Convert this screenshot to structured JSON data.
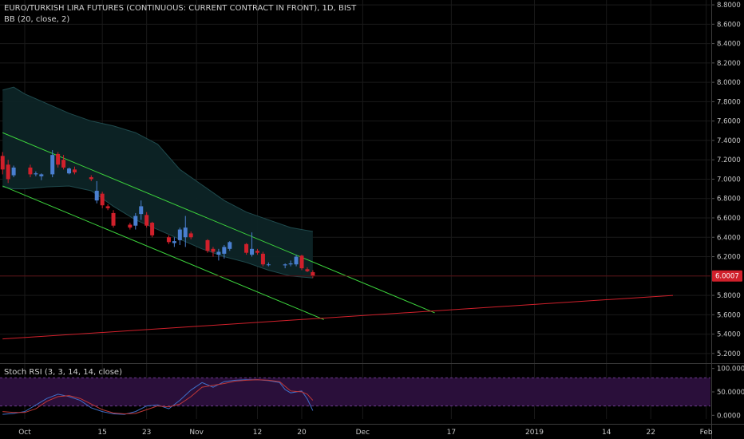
{
  "header": {
    "title": "EURO/TURKISH LIRA FUTURES (CONTINUOUS: CURRENT CONTRACT IN FRONT), 1D, BIST",
    "bb_legend": "BB (20, close, 2)",
    "rsi_legend": "Stoch RSI (3, 3, 14, 14, close)"
  },
  "colors": {
    "background": "#000000",
    "grid": "#1a1a1a",
    "up_candle": "#4a7fd0",
    "down_candle": "#d0202b",
    "bb_fill": "#0d2426",
    "bb_line": "#1f4a4d",
    "trend_green": "#3cd33c",
    "trend_red": "#d0202b",
    "rsi_band": "#2a0f3a",
    "rsi_k": "#3f6fc8",
    "rsi_d": "#c03838",
    "price_tag": "#d0202b"
  },
  "chart_data": [
    {
      "type": "candlestick",
      "name": "price",
      "ylim": [
        5.1,
        8.85
      ],
      "yticks": [
        "8.8000",
        "8.6000",
        "8.4000",
        "8.2000",
        "8.0000",
        "7.8000",
        "7.6000",
        "7.4000",
        "7.2000",
        "7.0000",
        "6.8000",
        "6.6000",
        "6.4000",
        "6.2000",
        "6.0000",
        "5.8000",
        "5.6000",
        "5.4000",
        "5.2000"
      ],
      "ytick_values": [
        8.8,
        8.6,
        8.4,
        8.2,
        8.0,
        7.8,
        7.6,
        7.4,
        7.2,
        7.0,
        6.8,
        6.6,
        6.4,
        6.2,
        6.0,
        5.8,
        5.6,
        5.4,
        5.2
      ],
      "xlim": [
        -4,
        120
      ],
      "x_labels": [
        {
          "day": 0,
          "label": "Oct"
        },
        {
          "day": 14,
          "label": "15"
        },
        {
          "day": 22,
          "label": "23"
        },
        {
          "day": 31,
          "label": "Nov"
        },
        {
          "day": 42,
          "label": "12"
        },
        {
          "day": 50,
          "label": "20"
        },
        {
          "day": 61,
          "label": "Dec"
        },
        {
          "day": 77,
          "label": "17"
        },
        {
          "day": 92,
          "label": "2019"
        },
        {
          "day": 105,
          "label": "14"
        },
        {
          "day": 113,
          "label": "22"
        },
        {
          "day": 123,
          "label": "Feb"
        }
      ],
      "last_price": "6.0007",
      "last_price_value": 6.0007,
      "candles": [
        {
          "d": -4,
          "o": 7.24,
          "h": 7.28,
          "l": 7.05,
          "c": 7.1
        },
        {
          "d": -3,
          "o": 7.15,
          "h": 7.2,
          "l": 6.96,
          "c": 7.0
        },
        {
          "d": -2,
          "o": 7.04,
          "h": 7.14,
          "l": 7.02,
          "c": 7.12
        },
        {
          "d": 1,
          "o": 7.12,
          "h": 7.15,
          "l": 7.02,
          "c": 7.05
        },
        {
          "d": 2,
          "o": 7.05,
          "h": 7.08,
          "l": 7.03,
          "c": 7.06
        },
        {
          "d": 3,
          "o": 7.03,
          "h": 7.06,
          "l": 6.99,
          "c": 7.05
        },
        {
          "d": 5,
          "o": 7.05,
          "h": 7.3,
          "l": 7.02,
          "c": 7.25
        },
        {
          "d": 6,
          "o": 7.26,
          "h": 7.28,
          "l": 7.12,
          "c": 7.15
        },
        {
          "d": 7,
          "o": 7.2,
          "h": 7.25,
          "l": 7.1,
          "c": 7.12
        },
        {
          "d": 8,
          "o": 7.06,
          "h": 7.12,
          "l": 7.05,
          "c": 7.11
        },
        {
          "d": 9,
          "o": 7.1,
          "h": 7.13,
          "l": 7.05,
          "c": 7.07
        },
        {
          "d": 12,
          "o": 7.02,
          "h": 7.04,
          "l": 6.98,
          "c": 7.0
        },
        {
          "d": 13,
          "o": 6.78,
          "h": 6.98,
          "l": 6.75,
          "c": 6.88
        },
        {
          "d": 14,
          "o": 6.85,
          "h": 6.87,
          "l": 6.7,
          "c": 6.73
        },
        {
          "d": 15,
          "o": 6.72,
          "h": 6.74,
          "l": 6.68,
          "c": 6.7
        },
        {
          "d": 16,
          "o": 6.65,
          "h": 6.68,
          "l": 6.5,
          "c": 6.52
        },
        {
          "d": 19,
          "o": 6.53,
          "h": 6.55,
          "l": 6.48,
          "c": 6.5
        },
        {
          "d": 20,
          "o": 6.52,
          "h": 6.65,
          "l": 6.48,
          "c": 6.62
        },
        {
          "d": 21,
          "o": 6.64,
          "h": 6.78,
          "l": 6.58,
          "c": 6.72
        },
        {
          "d": 22,
          "o": 6.63,
          "h": 6.66,
          "l": 6.5,
          "c": 6.52
        },
        {
          "d": 23,
          "o": 6.55,
          "h": 6.56,
          "l": 6.4,
          "c": 6.42
        },
        {
          "d": 26,
          "o": 6.4,
          "h": 6.42,
          "l": 6.33,
          "c": 6.35
        },
        {
          "d": 27,
          "o": 6.34,
          "h": 6.4,
          "l": 6.3,
          "c": 6.36
        },
        {
          "d": 28,
          "o": 6.37,
          "h": 6.5,
          "l": 6.32,
          "c": 6.48
        },
        {
          "d": 29,
          "o": 6.4,
          "h": 6.62,
          "l": 6.3,
          "c": 6.5
        },
        {
          "d": 30,
          "o": 6.44,
          "h": 6.46,
          "l": 6.38,
          "c": 6.4
        },
        {
          "d": 33,
          "o": 6.37,
          "h": 6.38,
          "l": 6.24,
          "c": 6.26
        },
        {
          "d": 34,
          "o": 6.28,
          "h": 6.3,
          "l": 6.2,
          "c": 6.25
        },
        {
          "d": 35,
          "o": 6.22,
          "h": 6.28,
          "l": 6.16,
          "c": 6.25
        },
        {
          "d": 36,
          "o": 6.23,
          "h": 6.32,
          "l": 6.18,
          "c": 6.3
        },
        {
          "d": 37,
          "o": 6.28,
          "h": 6.36,
          "l": 6.26,
          "c": 6.35
        },
        {
          "d": 40,
          "o": 6.33,
          "h": 6.34,
          "l": 6.22,
          "c": 6.24
        },
        {
          "d": 41,
          "o": 6.22,
          "h": 6.45,
          "l": 6.2,
          "c": 6.28
        },
        {
          "d": 42,
          "o": 6.26,
          "h": 6.28,
          "l": 6.22,
          "c": 6.24
        },
        {
          "d": 43,
          "o": 6.23,
          "h": 6.25,
          "l": 6.1,
          "c": 6.12
        },
        {
          "d": 44,
          "o": 6.12,
          "h": 6.14,
          "l": 6.1,
          "c": 6.12
        },
        {
          "d": 47,
          "o": 6.11,
          "h": 6.13,
          "l": 6.08,
          "c": 6.12
        },
        {
          "d": 48,
          "o": 6.12,
          "h": 6.16,
          "l": 6.1,
          "c": 6.13
        },
        {
          "d": 49,
          "o": 6.12,
          "h": 6.22,
          "l": 6.1,
          "c": 6.2
        },
        {
          "d": 50,
          "o": 6.21,
          "h": 6.22,
          "l": 6.06,
          "c": 6.08
        },
        {
          "d": 51,
          "o": 6.07,
          "h": 6.09,
          "l": 6.04,
          "c": 6.05
        },
        {
          "d": 52,
          "o": 6.04,
          "h": 6.06,
          "l": 5.98,
          "c": 6.0
        }
      ],
      "bollinger": {
        "upper": [
          [
            -4,
            7.92
          ],
          [
            -2,
            7.95
          ],
          [
            0,
            7.88
          ],
          [
            4,
            7.78
          ],
          [
            8,
            7.68
          ],
          [
            12,
            7.6
          ],
          [
            16,
            7.55
          ],
          [
            20,
            7.48
          ],
          [
            24,
            7.36
          ],
          [
            28,
            7.1
          ],
          [
            32,
            6.94
          ],
          [
            36,
            6.78
          ],
          [
            40,
            6.66
          ],
          [
            44,
            6.58
          ],
          [
            48,
            6.5
          ],
          [
            52,
            6.46
          ]
        ],
        "lower": [
          [
            -4,
            6.92
          ],
          [
            -2,
            6.9
          ],
          [
            0,
            6.9
          ],
          [
            4,
            6.92
          ],
          [
            8,
            6.93
          ],
          [
            12,
            6.88
          ],
          [
            16,
            6.72
          ],
          [
            20,
            6.58
          ],
          [
            24,
            6.48
          ],
          [
            28,
            6.38
          ],
          [
            32,
            6.28
          ],
          [
            36,
            6.2
          ],
          [
            40,
            6.14
          ],
          [
            44,
            6.06
          ],
          [
            48,
            6.0
          ],
          [
            52,
            5.98
          ]
        ]
      },
      "trendlines": [
        {
          "name": "upper-channel",
          "color": "green",
          "from": [
            -4,
            7.48
          ],
          "to": [
            74,
            5.62
          ]
        },
        {
          "name": "lower-channel",
          "color": "green",
          "from": [
            -4,
            6.93
          ],
          "to": [
            54,
            5.55
          ]
        },
        {
          "name": "support",
          "color": "red",
          "from": [
            -4,
            5.35
          ],
          "to": [
            117,
            5.8
          ]
        }
      ]
    },
    {
      "type": "line",
      "name": "stoch-rsi",
      "ylim": [
        -8,
        108
      ],
      "yticks": [
        "100.0000",
        "50.0000",
        "0.0000"
      ],
      "ytick_values": [
        100,
        50,
        0
      ],
      "band": [
        20,
        80
      ],
      "series": [
        {
          "key": "k",
          "points": [
            [
              -4,
              2
            ],
            [
              -2,
              4
            ],
            [
              0,
              8
            ],
            [
              2,
              22
            ],
            [
              4,
              36
            ],
            [
              6,
              45
            ],
            [
              8,
              40
            ],
            [
              10,
              32
            ],
            [
              12,
              16
            ],
            [
              14,
              8
            ],
            [
              16,
              3
            ],
            [
              18,
              2
            ],
            [
              20,
              8
            ],
            [
              22,
              20
            ],
            [
              24,
              22
            ],
            [
              26,
              14
            ],
            [
              28,
              32
            ],
            [
              30,
              54
            ],
            [
              32,
              70
            ],
            [
              34,
              60
            ],
            [
              36,
              72
            ],
            [
              38,
              75
            ],
            [
              40,
              76
            ],
            [
              42,
              76
            ],
            [
              44,
              74
            ],
            [
              46,
              70
            ],
            [
              47,
              55
            ],
            [
              48,
              48
            ],
            [
              50,
              52
            ],
            [
              51,
              35
            ],
            [
              52,
              10
            ]
          ]
        },
        {
          "key": "d",
          "points": [
            [
              -4,
              8
            ],
            [
              -2,
              6
            ],
            [
              0,
              6
            ],
            [
              2,
              14
            ],
            [
              4,
              30
            ],
            [
              6,
              40
            ],
            [
              8,
              42
            ],
            [
              10,
              36
            ],
            [
              12,
              24
            ],
            [
              14,
              12
            ],
            [
              16,
              5
            ],
            [
              18,
              3
            ],
            [
              20,
              4
            ],
            [
              22,
              12
            ],
            [
              24,
              20
            ],
            [
              26,
              18
            ],
            [
              28,
              24
            ],
            [
              30,
              40
            ],
            [
              32,
              60
            ],
            [
              34,
              64
            ],
            [
              36,
              68
            ],
            [
              38,
              73
            ],
            [
              40,
              75
            ],
            [
              42,
              76
            ],
            [
              44,
              75
            ],
            [
              46,
              72
            ],
            [
              47,
              62
            ],
            [
              48,
              52
            ],
            [
              50,
              50
            ],
            [
              51,
              45
            ],
            [
              52,
              32
            ]
          ]
        }
      ]
    }
  ]
}
